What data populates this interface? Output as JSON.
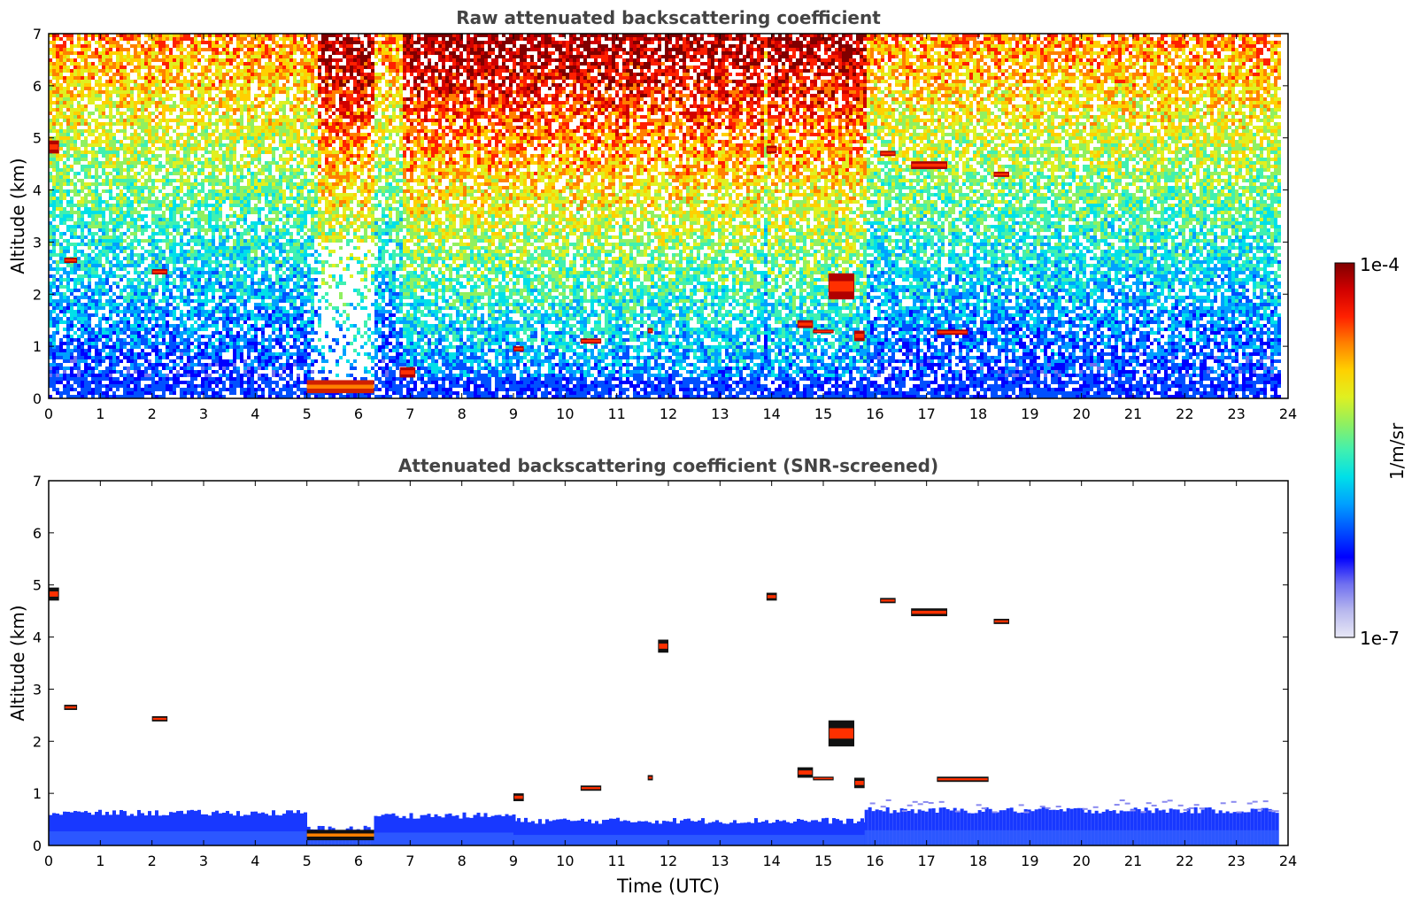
{
  "chart_data": [
    {
      "type": "heatmap",
      "title": "Raw attenuated backscattering coefficient",
      "xlabel": "",
      "ylabel": "Altitude (km)",
      "xlim": [
        0,
        24
      ],
      "ylim": [
        0,
        7
      ],
      "x_ticks": [
        0,
        1,
        2,
        3,
        4,
        5,
        6,
        7,
        8,
        9,
        10,
        11,
        12,
        13,
        14,
        15,
        16,
        17,
        18,
        19,
        20,
        21,
        22,
        23,
        24
      ],
      "y_ticks": [
        0,
        1,
        2,
        3,
        4,
        5,
        6,
        7
      ],
      "data_end_time": 23.8,
      "features": [
        {
          "kind": "noise-boundary-layer",
          "x": [
            0,
            23.8
          ],
          "y": [
            0,
            0.45
          ]
        },
        {
          "kind": "surface-layer",
          "x": [
            5.0,
            6.3
          ],
          "y": [
            0.1,
            0.35
          ]
        },
        {
          "kind": "cloud",
          "x": [
            0.0,
            0.2
          ],
          "y": [
            4.7,
            4.95
          ]
        },
        {
          "kind": "cloud",
          "x": [
            0.3,
            0.55
          ],
          "y": [
            2.6,
            2.7
          ]
        },
        {
          "kind": "cloud",
          "x": [
            2.0,
            2.3
          ],
          "y": [
            2.38,
            2.48
          ]
        },
        {
          "kind": "cloud",
          "x": [
            6.8,
            7.1
          ],
          "y": [
            0.4,
            0.6
          ]
        },
        {
          "kind": "cloud",
          "x": [
            9.0,
            9.2
          ],
          "y": [
            0.9,
            1.0
          ]
        },
        {
          "kind": "cloud",
          "x": [
            10.3,
            10.7
          ],
          "y": [
            1.05,
            1.15
          ]
        },
        {
          "kind": "cloud",
          "x": [
            11.6,
            11.7
          ],
          "y": [
            1.25,
            1.35
          ]
        },
        {
          "kind": "cloud",
          "x": [
            14.5,
            14.8
          ],
          "y": [
            1.35,
            1.5
          ]
        },
        {
          "kind": "cloud",
          "x": [
            14.8,
            15.2
          ],
          "y": [
            1.25,
            1.32
          ]
        },
        {
          "kind": "cloud",
          "x": [
            15.1,
            15.6
          ],
          "y": [
            1.9,
            2.4
          ]
        },
        {
          "kind": "cloud",
          "x": [
            15.6,
            15.8
          ],
          "y": [
            1.1,
            1.3
          ]
        },
        {
          "kind": "cloud",
          "x": [
            16.7,
            17.4
          ],
          "y": [
            4.4,
            4.55
          ]
        },
        {
          "kind": "cloud",
          "x": [
            17.2,
            17.8
          ],
          "y": [
            1.22,
            1.32
          ]
        },
        {
          "kind": "cloud",
          "x": [
            18.3,
            18.6
          ],
          "y": [
            4.25,
            4.35
          ]
        },
        {
          "kind": "cloud",
          "x": [
            16.1,
            16.4
          ],
          "y": [
            4.65,
            4.75
          ]
        },
        {
          "kind": "cloud",
          "x": [
            13.9,
            14.1
          ],
          "y": [
            4.7,
            4.85
          ]
        }
      ]
    },
    {
      "type": "heatmap",
      "title": "Attenuated backscattering coefficient (SNR-screened)",
      "xlabel": "Time (UTC)",
      "ylabel": "Altitude (km)",
      "xlim": [
        0,
        24
      ],
      "ylim": [
        0,
        7
      ],
      "x_ticks": [
        0,
        1,
        2,
        3,
        4,
        5,
        6,
        7,
        8,
        9,
        10,
        11,
        12,
        13,
        14,
        15,
        16,
        17,
        18,
        19,
        20,
        21,
        22,
        23,
        24
      ],
      "y_ticks": [
        0,
        1,
        2,
        3,
        4,
        5,
        6,
        7
      ],
      "data_end_time": 23.8,
      "features": [
        {
          "kind": "boundary-layer",
          "x": [
            0,
            5.0
          ],
          "y": [
            0,
            0.6
          ]
        },
        {
          "kind": "boundary-layer",
          "x": [
            5.0,
            6.3
          ],
          "y": [
            0,
            0.3
          ]
        },
        {
          "kind": "boundary-layer",
          "x": [
            6.3,
            9.0
          ],
          "y": [
            0,
            0.55
          ]
        },
        {
          "kind": "boundary-layer",
          "x": [
            9.0,
            15.8
          ],
          "y": [
            0,
            0.45
          ]
        },
        {
          "kind": "boundary-layer",
          "x": [
            15.8,
            23.8
          ],
          "y": [
            0,
            0.65
          ]
        },
        {
          "kind": "surface-layer",
          "x": [
            5.0,
            6.3
          ],
          "y": [
            0.1,
            0.3
          ]
        },
        {
          "kind": "cloud",
          "x": [
            0.0,
            0.2
          ],
          "y": [
            4.7,
            4.95
          ]
        },
        {
          "kind": "cloud",
          "x": [
            0.3,
            0.55
          ],
          "y": [
            2.6,
            2.7
          ]
        },
        {
          "kind": "cloud",
          "x": [
            2.0,
            2.3
          ],
          "y": [
            2.38,
            2.48
          ]
        },
        {
          "kind": "cloud",
          "x": [
            9.0,
            9.2
          ],
          "y": [
            0.85,
            1.0
          ]
        },
        {
          "kind": "cloud",
          "x": [
            10.3,
            10.7
          ],
          "y": [
            1.05,
            1.15
          ]
        },
        {
          "kind": "cloud",
          "x": [
            11.6,
            11.7
          ],
          "y": [
            1.25,
            1.35
          ]
        },
        {
          "kind": "cloud",
          "x": [
            14.5,
            14.8
          ],
          "y": [
            1.3,
            1.5
          ]
        },
        {
          "kind": "cloud",
          "x": [
            14.8,
            15.2
          ],
          "y": [
            1.25,
            1.32
          ]
        },
        {
          "kind": "cloud",
          "x": [
            15.1,
            15.6
          ],
          "y": [
            1.9,
            2.4
          ]
        },
        {
          "kind": "cloud",
          "x": [
            15.6,
            15.8
          ],
          "y": [
            1.1,
            1.3
          ]
        },
        {
          "kind": "cloud",
          "x": [
            16.7,
            17.4
          ],
          "y": [
            4.4,
            4.55
          ]
        },
        {
          "kind": "cloud",
          "x": [
            17.2,
            18.2
          ],
          "y": [
            1.22,
            1.32
          ]
        },
        {
          "kind": "cloud",
          "x": [
            18.3,
            18.6
          ],
          "y": [
            4.25,
            4.35
          ]
        },
        {
          "kind": "cloud",
          "x": [
            16.1,
            16.4
          ],
          "y": [
            4.65,
            4.75
          ]
        },
        {
          "kind": "cloud",
          "x": [
            13.9,
            14.1
          ],
          "y": [
            4.7,
            4.85
          ]
        },
        {
          "kind": "cloud",
          "x": [
            11.8,
            12.0
          ],
          "y": [
            3.7,
            3.95
          ]
        }
      ]
    }
  ],
  "colorbar": {
    "label": "1/m/sr",
    "max_label": "1e-4",
    "min_label": "1e-7",
    "scale": "log",
    "colors": [
      "#e8e8f6",
      "#b8b8ee",
      "#6f6ff0",
      "#0000ff",
      "#0050ff",
      "#00a0ff",
      "#00e0e8",
      "#40f0b0",
      "#90f060",
      "#e0f020",
      "#ffd000",
      "#ff8000",
      "#ff2000",
      "#d00000",
      "#800000"
    ]
  }
}
